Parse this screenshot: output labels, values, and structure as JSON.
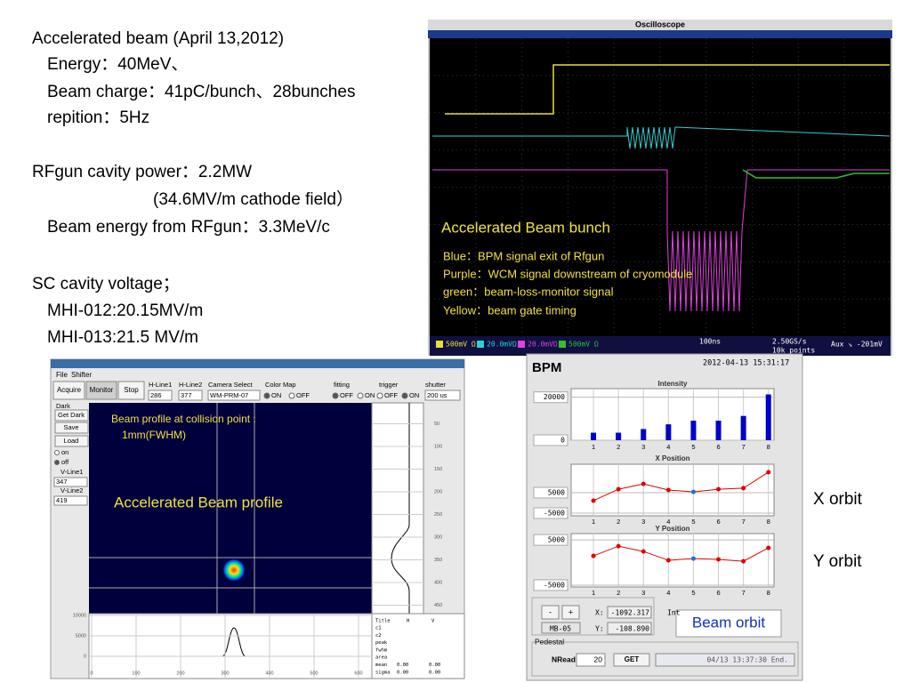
{
  "slide": {
    "lines": [
      "Accelerated beam (April 13,2012)",
      "Energy：40MeV、",
      "Beam charge：41pC/bunch、28bunches",
      "repition：5Hz",
      "RFgun cavity power：2.2MW",
      "(34.6MV/m cathode field）",
      "Beam energy from RFgun：3.3MeV/c",
      "SC cavity voltage；",
      "MHI-012:20.15MV/m",
      "MHI-013:21.5 MV/m"
    ],
    "x_orbit_label": "X   orbit",
    "y_orbit_label": "Y   orbit",
    "beam_orbit_label": "Beam orbit"
  },
  "oscilloscope": {
    "title": "Oscilloscope",
    "overlay": "Accelerated Beam bunch",
    "legend": [
      "Blue：BPM signal exit of Rfgun",
      "Purple：WCM signal downstream of cryomodule",
      "green：beam-loss-monitor signal",
      "Yellow：beam gate timing"
    ],
    "channels": [
      "500mV Ω",
      "20.0mVΩ",
      "20.0mVΩ",
      "500mV Ω"
    ],
    "timebase": "100ns",
    "sample_rate": "2.50GS/s",
    "record": "10k points",
    "aux": "Aux ↘ -201mV"
  },
  "camera": {
    "menu": [
      "File",
      "Shifter"
    ],
    "buttons": [
      "Acquire",
      "Monitor",
      "Stop"
    ],
    "field_labels": [
      "H-Line1",
      "H-Line2",
      "Camera Select",
      "Color Map",
      "fitting",
      "trigger",
      "shutter"
    ],
    "h_line1": "286",
    "h_line2": "377",
    "camera_select": "WM-PRM-07",
    "color_map_options": [
      "ON",
      "OFF"
    ],
    "fitting_options": [
      "OFF",
      "ON"
    ],
    "trigger_options": [
      "OFF",
      "ON"
    ],
    "shutter": "200 us",
    "side": [
      "Dark",
      "Get Dark",
      "Save",
      "Load",
      "on",
      "off",
      "V-Line1",
      "347",
      "V-Line2",
      "419"
    ],
    "overlay_title": "Beam profile at collision point :",
    "overlay_size": "1mm(FWHM)",
    "overlay_label": "Accelerated Beam profile",
    "x_ticks": [
      0,
      100,
      200,
      300,
      400,
      500,
      600
    ],
    "y_ticks": [
      50,
      100,
      150,
      200,
      250,
      300,
      350,
      400,
      450
    ],
    "h_plot_ticks": [
      10000,
      5000,
      0
    ],
    "table_header": [
      "Title",
      "H",
      "V"
    ],
    "table_rows": [
      "c1",
      "c2",
      "peak",
      "fwhm",
      "area",
      "mean",
      "sigma"
    ],
    "zero_value": "0.00"
  },
  "bpm": {
    "title": "BPM",
    "timestamp": "2012-04-13 15:31:17",
    "charts": [
      {
        "type": "bar",
        "title": "Intensity",
        "categories": [
          "1",
          "2",
          "3",
          "4",
          "5",
          "6",
          "7",
          "8"
        ],
        "values": [
          3500,
          3500,
          5200,
          7400,
          9100,
          9100,
          11300,
          21300
        ],
        "ylim": [
          0,
          24000
        ],
        "yticks": [
          0,
          20000
        ],
        "color": "#0000cc"
      },
      {
        "type": "line",
        "title": "X Position",
        "categories": [
          "1",
          "2",
          "3",
          "4",
          "5",
          "6",
          "7",
          "8"
        ],
        "values": [
          1100,
          6700,
          9300,
          6300,
          5400,
          6700,
          7200,
          15000
        ],
        "ylim": [
          -6300,
          18900
        ],
        "yticks": [
          -5000,
          5000
        ],
        "color": "#e00000",
        "point_colors": [
          "#e00000",
          "#e00000",
          "#e00000",
          "#e00000",
          "#1e6fd9",
          "#e00000",
          "#e00000",
          "#e00000"
        ]
      },
      {
        "type": "line",
        "title": "Y Position",
        "categories": [
          "1",
          "2",
          "3",
          "4",
          "5",
          "6",
          "7",
          "8"
        ],
        "values": [
          1470,
          3630,
          2450,
          490,
          880,
          690,
          290,
          3240
        ],
        "ylim": [
          -5400,
          6400
        ],
        "yticks": [
          -5000,
          5000
        ],
        "color": "#e00000",
        "point_colors": [
          "#e00000",
          "#e00000",
          "#e00000",
          "#e00000",
          "#1e6fd9",
          "#e00000",
          "#e00000",
          "#e00000"
        ]
      }
    ],
    "step_buttons": [
      "-",
      "+"
    ],
    "monitor": "MB-05",
    "x_label": "X:",
    "x_value": "-1092.317",
    "y_label": "Y:",
    "y_value": "-108.890",
    "int_label": "Int",
    "pedestal": "Pedestal",
    "nread_label": "NRead:",
    "nread": 20,
    "get": "GET",
    "status": "04/13 13:37:30 End."
  }
}
